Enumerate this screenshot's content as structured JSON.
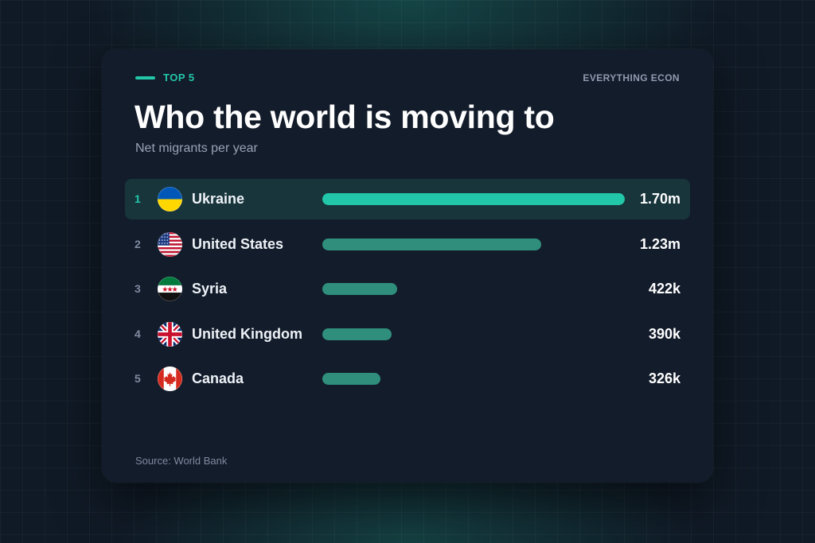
{
  "header": {
    "kicker": "TOP 5",
    "brand": "EVERYTHING ECON",
    "title": "Who the world is moving to",
    "subtitle": "Net migrants per year"
  },
  "footer": {
    "source": "Source: World Bank"
  },
  "colors": {
    "accent": "#22c7a9",
    "bar": "#2f8f7c",
    "highlight_row": "#17353b",
    "card": "#131c2b"
  },
  "chart_data": {
    "type": "bar",
    "orientation": "horizontal",
    "unit": "net migrants per year",
    "categories": [
      "Ukraine",
      "United States",
      "Syria",
      "United Kingdom",
      "Canada"
    ],
    "values": [
      1700000,
      1230000,
      422000,
      390000,
      326000
    ],
    "value_labels": [
      "1.70m",
      "1.23m",
      "422k",
      "390k",
      "326k"
    ],
    "ranks": [
      "1",
      "2",
      "3",
      "4",
      "5"
    ],
    "flags": [
      "ukraine-flag-icon",
      "us-flag-icon",
      "syria-flag-icon",
      "uk-flag-icon",
      "canada-flag-icon"
    ],
    "highlighted_index": 0,
    "xlim": [
      0,
      1700000
    ],
    "grid": false
  }
}
